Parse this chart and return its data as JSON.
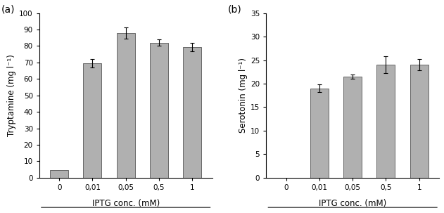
{
  "panel_a": {
    "label": "(a)",
    "categories": [
      "0",
      "0,01",
      "0,05",
      "0,5",
      "1"
    ],
    "values": [
      4.5,
      69.5,
      88.0,
      82.0,
      79.5
    ],
    "errors": [
      0.0,
      2.5,
      3.5,
      2.0,
      2.5
    ],
    "ylabel": "Tryptamine (mg l⁻¹)",
    "xlabel": "IPTG conc. (mM)",
    "ylim": [
      0,
      100
    ],
    "yticks": [
      0,
      10,
      20,
      30,
      40,
      50,
      60,
      70,
      80,
      90,
      100
    ]
  },
  "panel_b": {
    "label": "(b)",
    "categories": [
      "0",
      "0,01",
      "0,05",
      "0,5",
      "1"
    ],
    "values": [
      0.0,
      19.0,
      21.5,
      24.0,
      24.0
    ],
    "errors": [
      0.0,
      0.8,
      0.5,
      1.8,
      1.2
    ],
    "ylabel": "Serotonin (mg l⁻¹)",
    "xlabel": "IPTG conc. (mM)",
    "ylim": [
      0,
      35
    ],
    "yticks": [
      0,
      5,
      10,
      15,
      20,
      25,
      30,
      35
    ]
  },
  "bar_color": "#b0b0b0",
  "bar_edgecolor": "#555555",
  "error_color": "black",
  "bar_width": 0.55,
  "figsize": [
    6.31,
    3.03
  ],
  "dpi": 100
}
